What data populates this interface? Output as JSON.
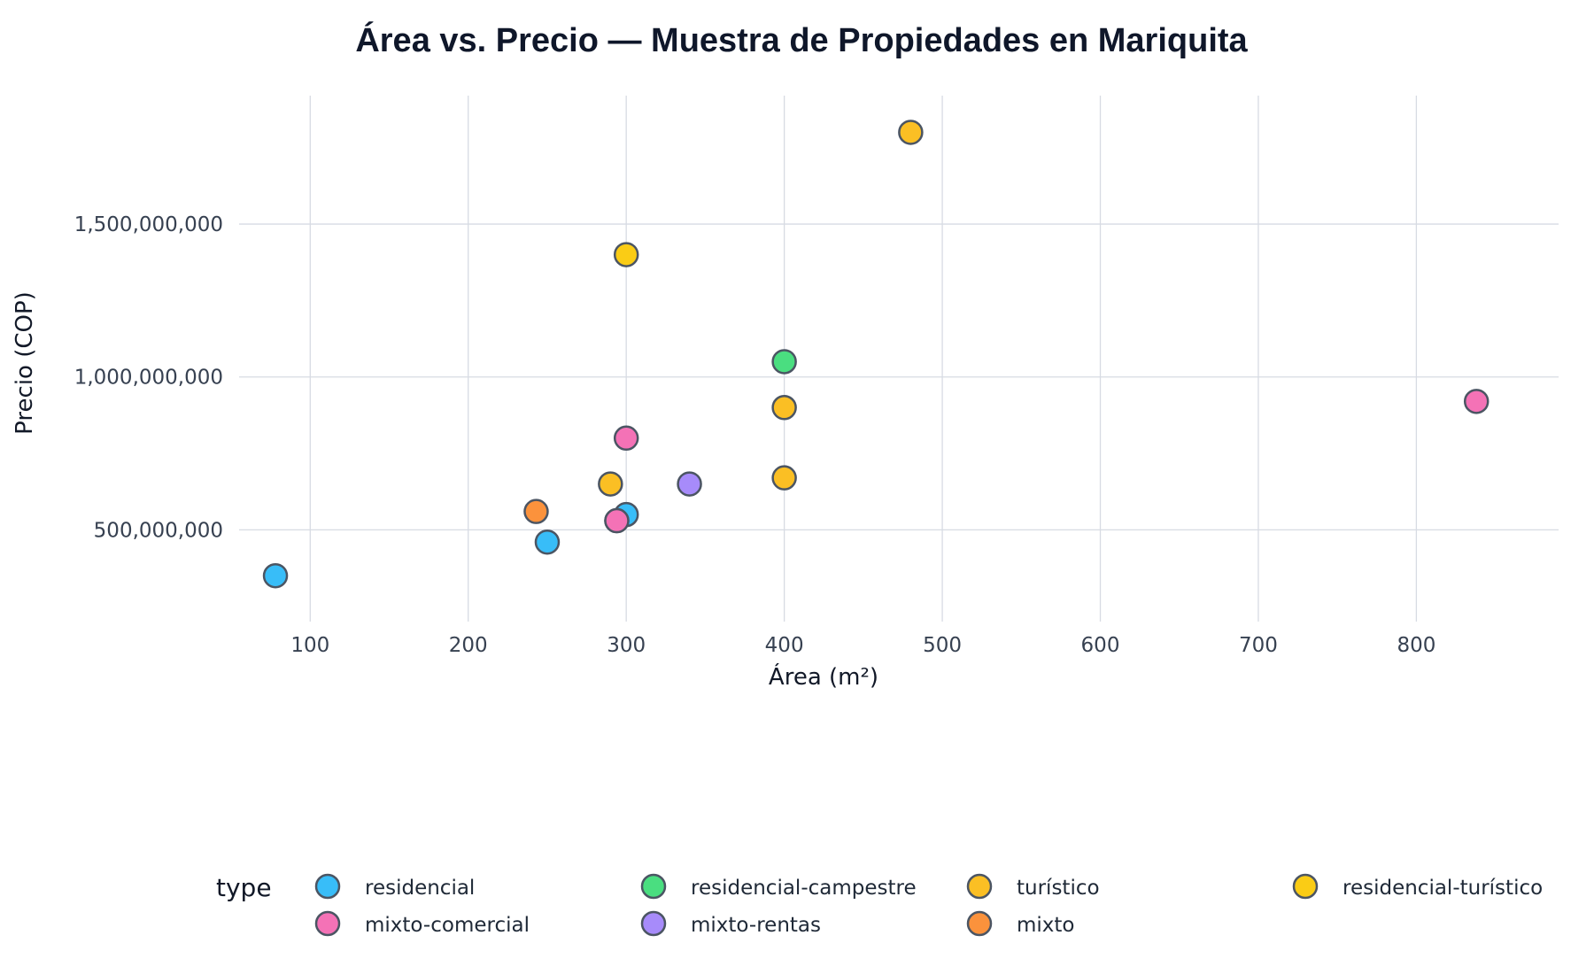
{
  "chart_data": {
    "type": "scatter",
    "title": "Área vs. Precio — Muestra de Propiedades en Mariquita",
    "xlabel": "Área (m²)",
    "ylabel": "Precio (COP)",
    "xlim": [
      55,
      890
    ],
    "ylim": [
      200000000,
      1920000000
    ],
    "xticks": [
      100,
      200,
      300,
      400,
      500,
      600,
      700,
      800
    ],
    "xtick_labels": [
      "100",
      "200",
      "300",
      "400",
      "500",
      "600",
      "700",
      "800"
    ],
    "yticks": [
      500000000,
      1000000000,
      1500000000
    ],
    "ytick_labels": [
      "500,000,000",
      "1,000,000,000",
      "1,500,000,000"
    ],
    "grid": true,
    "legend_title": "type",
    "legend_position": "bottom",
    "series": [
      {
        "name": "residencial",
        "color": "#38bdf8",
        "points": [
          [
            78,
            350000000
          ],
          [
            250,
            460000000
          ],
          [
            300,
            550000000
          ],
          [
            294,
            530000000
          ]
        ]
      },
      {
        "name": "residencial-campestre",
        "color": "#4ade80",
        "points": [
          [
            400,
            1050000000
          ]
        ]
      },
      {
        "name": "turístico",
        "color": "#fbbf24",
        "points": [
          [
            290,
            650000000
          ],
          [
            400,
            900000000
          ],
          [
            400,
            670000000
          ],
          [
            480,
            1800000000
          ]
        ]
      },
      {
        "name": "residencial-turístico",
        "color": "#facc15",
        "points": [
          [
            300,
            1400000000
          ]
        ]
      },
      {
        "name": "mixto-comercial",
        "color": "#f472b6",
        "points": [
          [
            300,
            800000000
          ],
          [
            294,
            530000000
          ],
          [
            838,
            920000000
          ]
        ]
      },
      {
        "name": "mixto-rentas",
        "color": "#a78bfa",
        "points": [
          [
            340,
            650000000
          ]
        ]
      },
      {
        "name": "mixto",
        "color": "#fb923c",
        "points": [
          [
            243,
            560000000
          ]
        ]
      }
    ]
  }
}
